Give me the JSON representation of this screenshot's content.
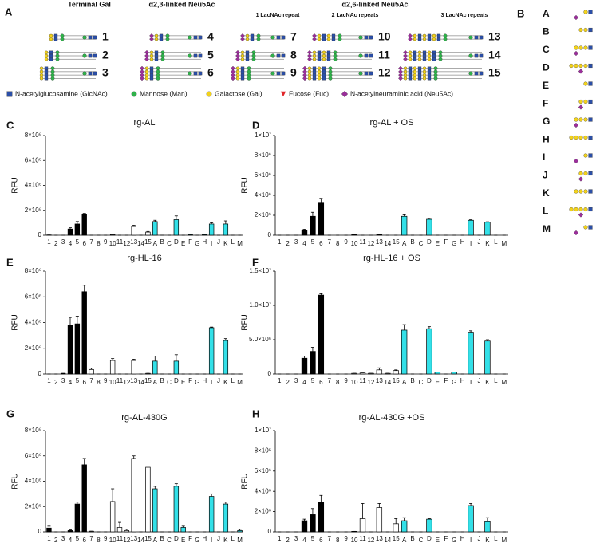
{
  "panel_a": {
    "letter": "A",
    "headers": [
      "Terminal Gal",
      "α2,3-linked Neu5Ac",
      "α2,6-linked Neu5Ac"
    ],
    "subheaders": [
      "1 LacNAc repeat",
      "2 LacNAc repeats",
      "3 LacNAc repeats"
    ],
    "numbers": [
      "1",
      "2",
      "3",
      "4",
      "5",
      "6",
      "7",
      "8",
      "9",
      "10",
      "11",
      "12",
      "13",
      "14",
      "15"
    ],
    "legend": [
      "N-acetylglucosamine (GlcNAc)",
      "Mannose (Man)",
      "Galactose (Gal)",
      "Fucose (Fuc)",
      "N-acetylneuraminic acid (Neu5Ac)"
    ]
  },
  "panel_b": {
    "letter": "B",
    "labels": [
      "A",
      "B",
      "C",
      "D",
      "E",
      "F",
      "G",
      "H",
      "I",
      "J",
      "K",
      "L",
      "M"
    ]
  },
  "chart_data": [
    {
      "type": "bar",
      "panel": "C",
      "title": "rg-AL",
      "ylabel": "RFU",
      "categories": [
        "1",
        "2",
        "3",
        "4",
        "5",
        "6",
        "7",
        "8",
        "9",
        "10",
        "11",
        "12",
        "13",
        "14",
        "15",
        "A",
        "B",
        "C",
        "D",
        "E",
        "F",
        "G",
        "H",
        "I",
        "J",
        "K",
        "L",
        "M"
      ],
      "colors": [
        "#000000",
        "#000000",
        "#000000",
        "#000000",
        "#000000",
        "#000000",
        "#ffffff",
        "#ffffff",
        "#ffffff",
        "#ffffff",
        "#ffffff",
        "#ffffff",
        "#ffffff",
        "#ffffff",
        "#ffffff",
        "#33e0e8",
        "#33e0e8",
        "#33e0e8",
        "#33e0e8",
        "#33e0e8",
        "#33e0e8",
        "#33e0e8",
        "#33e0e8",
        "#33e0e8",
        "#33e0e8",
        "#33e0e8",
        "#33e0e8",
        "#33e0e8"
      ],
      "values": [
        20000,
        0,
        0,
        500000,
        900000,
        1700000,
        0,
        0,
        0,
        50000,
        0,
        0,
        700000,
        0,
        250000,
        1100000,
        0,
        0,
        1250000,
        0,
        50000,
        0,
        50000,
        900000,
        0,
        900000,
        0,
        0
      ],
      "errors": [
        0,
        0,
        0,
        100000,
        200000,
        50000,
        0,
        0,
        0,
        50000,
        0,
        0,
        100000,
        0,
        50000,
        100000,
        0,
        0,
        300000,
        0,
        0,
        0,
        0,
        100000,
        0,
        250000,
        0,
        0
      ],
      "ylim": [
        0,
        8000000
      ],
      "yticks": [
        0,
        {
          "value": 2000000,
          "label": "2×10⁶"
        },
        {
          "value": 4000000,
          "label": "4×10⁶"
        },
        {
          "value": 6000000,
          "label": "6×10⁶"
        },
        {
          "value": 8000000,
          "label": "8×10⁶"
        }
      ]
    },
    {
      "type": "bar",
      "panel": "D",
      "title": "rg-AL + OS",
      "ylabel": "RFU",
      "categories": [
        "1",
        "2",
        "3",
        "4",
        "5",
        "6",
        "7",
        "8",
        "9",
        "10",
        "11",
        "12",
        "13",
        "14",
        "15",
        "A",
        "B",
        "C",
        "D",
        "E",
        "F",
        "G",
        "H",
        "I",
        "J",
        "K",
        "L",
        "M"
      ],
      "colors": [
        "#000000",
        "#000000",
        "#000000",
        "#000000",
        "#000000",
        "#000000",
        "#ffffff",
        "#ffffff",
        "#ffffff",
        "#ffffff",
        "#ffffff",
        "#ffffff",
        "#ffffff",
        "#ffffff",
        "#ffffff",
        "#33e0e8",
        "#33e0e8",
        "#33e0e8",
        "#33e0e8",
        "#33e0e8",
        "#33e0e8",
        "#33e0e8",
        "#33e0e8",
        "#33e0e8",
        "#33e0e8",
        "#33e0e8",
        "#33e0e8",
        "#33e0e8"
      ],
      "values": [
        0,
        0,
        0,
        500000,
        1900000,
        3300000,
        0,
        0,
        0,
        50000,
        0,
        0,
        50000,
        0,
        0,
        1900000,
        0,
        0,
        1600000,
        0,
        0,
        0,
        0,
        1500000,
        0,
        1300000,
        0,
        0
      ],
      "errors": [
        0,
        0,
        0,
        100000,
        400000,
        400000,
        0,
        0,
        0,
        0,
        0,
        0,
        0,
        0,
        0,
        150000,
        0,
        0,
        100000,
        0,
        0,
        0,
        0,
        50000,
        0,
        50000,
        0,
        0
      ],
      "ylim": [
        0,
        10000000
      ],
      "yticks": [
        0,
        {
          "value": 2000000,
          "label": "2×10⁶"
        },
        {
          "value": 4000000,
          "label": "4×10⁶"
        },
        {
          "value": 6000000,
          "label": "6×10⁶"
        },
        {
          "value": 8000000,
          "label": "8×10⁶"
        },
        {
          "value": 10000000,
          "label": "1×10⁷"
        }
      ]
    },
    {
      "type": "bar",
      "panel": "E",
      "title": "rg-HL-16",
      "ylabel": "RFU",
      "categories": [
        "1",
        "2",
        "3",
        "4",
        "5",
        "6",
        "7",
        "8",
        "9",
        "10",
        "11",
        "12",
        "13",
        "14",
        "15",
        "A",
        "B",
        "C",
        "D",
        "E",
        "F",
        "G",
        "H",
        "I",
        "J",
        "K",
        "L",
        "M"
      ],
      "colors": [
        "#000000",
        "#000000",
        "#000000",
        "#000000",
        "#000000",
        "#000000",
        "#ffffff",
        "#ffffff",
        "#ffffff",
        "#ffffff",
        "#ffffff",
        "#ffffff",
        "#ffffff",
        "#ffffff",
        "#ffffff",
        "#33e0e8",
        "#33e0e8",
        "#33e0e8",
        "#33e0e8",
        "#33e0e8",
        "#33e0e8",
        "#33e0e8",
        "#33e0e8",
        "#33e0e8",
        "#33e0e8",
        "#33e0e8",
        "#33e0e8",
        "#33e0e8"
      ],
      "values": [
        0,
        0,
        50000,
        3800000,
        3900000,
        6400000,
        350000,
        0,
        0,
        1050000,
        0,
        0,
        1050000,
        0,
        50000,
        1000000,
        0,
        0,
        1000000,
        0,
        0,
        0,
        0,
        3600000,
        0,
        2600000,
        0,
        0
      ],
      "errors": [
        0,
        0,
        0,
        600000,
        600000,
        500000,
        100000,
        0,
        0,
        150000,
        0,
        0,
        100000,
        0,
        0,
        400000,
        0,
        0,
        500000,
        0,
        0,
        0,
        0,
        50000,
        0,
        150000,
        0,
        0
      ],
      "ylim": [
        0,
        8000000
      ],
      "yticks": [
        0,
        {
          "value": 2000000,
          "label": "2×10⁶"
        },
        {
          "value": 4000000,
          "label": "4×10⁶"
        },
        {
          "value": 6000000,
          "label": "6×10⁶"
        },
        {
          "value": 8000000,
          "label": "8×10⁶"
        }
      ]
    },
    {
      "type": "bar",
      "panel": "F",
      "title": "rg-HL-16 + OS",
      "ylabel": "RFU",
      "categories": [
        "1",
        "2",
        "3",
        "4",
        "5",
        "6",
        "7",
        "8",
        "9",
        "10",
        "11",
        "12",
        "13",
        "14",
        "15",
        "A",
        "B",
        "C",
        "D",
        "E",
        "F",
        "G",
        "H",
        "I",
        "J",
        "K",
        "L",
        "M"
      ],
      "colors": [
        "#000000",
        "#000000",
        "#000000",
        "#000000",
        "#000000",
        "#000000",
        "#ffffff",
        "#ffffff",
        "#ffffff",
        "#ffffff",
        "#ffffff",
        "#ffffff",
        "#ffffff",
        "#ffffff",
        "#ffffff",
        "#33e0e8",
        "#33e0e8",
        "#33e0e8",
        "#33e0e8",
        "#33e0e8",
        "#33e0e8",
        "#33e0e8",
        "#33e0e8",
        "#33e0e8",
        "#33e0e8",
        "#33e0e8",
        "#33e0e8",
        "#33e0e8"
      ],
      "values": [
        0,
        0,
        0,
        2300000,
        3300000,
        11500000,
        0,
        0,
        0,
        100000,
        150000,
        100000,
        600000,
        100000,
        500000,
        6400000,
        0,
        0,
        6600000,
        300000,
        0,
        300000,
        0,
        6100000,
        0,
        4800000,
        0,
        0
      ],
      "errors": [
        0,
        0,
        0,
        300000,
        600000,
        200000,
        0,
        0,
        0,
        0,
        0,
        0,
        300000,
        0,
        100000,
        800000,
        0,
        0,
        300000,
        0,
        0,
        0,
        0,
        200000,
        0,
        200000,
        0,
        0
      ],
      "ylim": [
        0,
        15000000
      ],
      "yticks": [
        0,
        {
          "value": 5000000,
          "label": "5.0×10⁶"
        },
        {
          "value": 10000000,
          "label": "1.0×10⁷"
        },
        {
          "value": 15000000,
          "label": "1.5×10⁷"
        }
      ]
    },
    {
      "type": "bar",
      "panel": "G",
      "title": "rg-AL-430G",
      "ylabel": "RFU",
      "categories": [
        "1",
        "2",
        "3",
        "4",
        "5",
        "6",
        "7",
        "8",
        "9",
        "10",
        "11",
        "12",
        "13",
        "14",
        "15",
        "A",
        "B",
        "C",
        "D",
        "E",
        "F",
        "G",
        "H",
        "I",
        "J",
        "K",
        "L",
        "M"
      ],
      "colors": [
        "#000000",
        "#000000",
        "#000000",
        "#000000",
        "#000000",
        "#000000",
        "#ffffff",
        "#ffffff",
        "#ffffff",
        "#ffffff",
        "#ffffff",
        "#ffffff",
        "#ffffff",
        "#ffffff",
        "#ffffff",
        "#33e0e8",
        "#33e0e8",
        "#33e0e8",
        "#33e0e8",
        "#33e0e8",
        "#33e0e8",
        "#33e0e8",
        "#33e0e8",
        "#33e0e8",
        "#33e0e8",
        "#33e0e8",
        "#33e0e8",
        "#33e0e8"
      ],
      "values": [
        300000,
        0,
        0,
        100000,
        2200000,
        5300000,
        50000,
        0,
        0,
        2400000,
        350000,
        100000,
        5800000,
        0,
        5100000,
        3400000,
        0,
        0,
        3600000,
        350000,
        0,
        0,
        0,
        2800000,
        0,
        2200000,
        0,
        100000
      ],
      "errors": [
        150000,
        0,
        0,
        50000,
        150000,
        500000,
        0,
        0,
        0,
        1000000,
        400000,
        100000,
        200000,
        0,
        100000,
        200000,
        0,
        0,
        200000,
        100000,
        0,
        0,
        0,
        200000,
        0,
        150000,
        0,
        100000
      ],
      "ylim": [
        0,
        8000000
      ],
      "yticks": [
        0,
        {
          "value": 2000000,
          "label": "2×10⁶"
        },
        {
          "value": 4000000,
          "label": "4×10⁶"
        },
        {
          "value": 6000000,
          "label": "6×10⁶"
        },
        {
          "value": 8000000,
          "label": "8×10⁶"
        }
      ]
    },
    {
      "type": "bar",
      "panel": "H",
      "title": "rg-AL-430G +OS",
      "ylabel": "RFU",
      "categories": [
        "1",
        "2",
        "3",
        "4",
        "5",
        "6",
        "7",
        "8",
        "9",
        "10",
        "11",
        "12",
        "13",
        "14",
        "15",
        "A",
        "B",
        "C",
        "D",
        "E",
        "F",
        "G",
        "H",
        "I",
        "J",
        "K",
        "L",
        "M"
      ],
      "colors": [
        "#000000",
        "#000000",
        "#000000",
        "#000000",
        "#000000",
        "#000000",
        "#ffffff",
        "#ffffff",
        "#ffffff",
        "#ffffff",
        "#ffffff",
        "#ffffff",
        "#ffffff",
        "#ffffff",
        "#ffffff",
        "#33e0e8",
        "#33e0e8",
        "#33e0e8",
        "#33e0e8",
        "#33e0e8",
        "#33e0e8",
        "#33e0e8",
        "#33e0e8",
        "#33e0e8",
        "#33e0e8",
        "#33e0e8",
        "#33e0e8",
        "#33e0e8"
      ],
      "values": [
        0,
        0,
        0,
        1100000,
        1700000,
        2900000,
        0,
        0,
        0,
        50000,
        1300000,
        0,
        2400000,
        0,
        800000,
        1100000,
        0,
        0,
        1250000,
        0,
        0,
        0,
        0,
        2600000,
        0,
        1000000,
        0,
        0
      ],
      "errors": [
        0,
        0,
        0,
        150000,
        600000,
        700000,
        0,
        0,
        0,
        0,
        1500000,
        0,
        400000,
        0,
        500000,
        300000,
        0,
        0,
        50000,
        0,
        0,
        0,
        0,
        200000,
        0,
        400000,
        0,
        0
      ],
      "ylim": [
        0,
        10000000
      ],
      "yticks": [
        0,
        {
          "value": 2000000,
          "label": "2×10⁶"
        },
        {
          "value": 4000000,
          "label": "4×10⁶"
        },
        {
          "value": 6000000,
          "label": "6×10⁶"
        },
        {
          "value": 8000000,
          "label": "8×10⁶"
        },
        {
          "value": 10000000,
          "label": "1×10⁷"
        }
      ]
    }
  ]
}
